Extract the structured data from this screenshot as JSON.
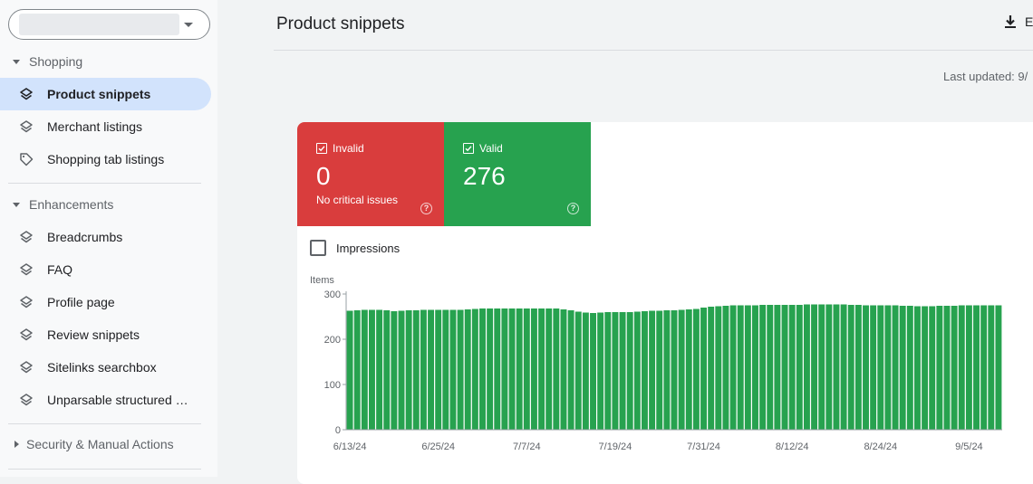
{
  "sidebar": {
    "sections": [
      {
        "label": "Shopping",
        "expanded": true,
        "items": [
          {
            "label": "Product snippets",
            "icon": "layers-icon",
            "active": true
          },
          {
            "label": "Merchant listings",
            "icon": "layers-icon"
          },
          {
            "label": "Shopping tab listings",
            "icon": "tag-icon"
          }
        ]
      },
      {
        "label": "Enhancements",
        "expanded": true,
        "items": [
          {
            "label": "Breadcrumbs",
            "icon": "layers-icon"
          },
          {
            "label": "FAQ",
            "icon": "layers-icon"
          },
          {
            "label": "Profile page",
            "icon": "layers-icon"
          },
          {
            "label": "Review snippets",
            "icon": "layers-icon"
          },
          {
            "label": "Sitelinks searchbox",
            "icon": "layers-icon"
          },
          {
            "label": "Unparsable structured data",
            "icon": "layers-icon"
          }
        ]
      },
      {
        "label": "Security & Manual Actions",
        "expanded": false,
        "items": []
      }
    ]
  },
  "header": {
    "title": "Product snippets",
    "export_label": "E",
    "last_updated": "Last updated: 9/"
  },
  "summary": {
    "invalid": {
      "label": "Invalid",
      "value": "0",
      "note": "No critical issues",
      "color": "#d93d3d"
    },
    "valid": {
      "label": "Valid",
      "value": "276",
      "color": "#27a24f"
    }
  },
  "impressions": {
    "label": "Impressions",
    "checked": false
  },
  "chart_data": {
    "type": "bar",
    "ylabel": "Items",
    "ylim": [
      0,
      300
    ],
    "y_ticks": [
      "300",
      "200",
      "100",
      "0"
    ],
    "x_ticks": [
      "6/13/24",
      "6/25/24",
      "7/7/24",
      "7/19/24",
      "7/31/24",
      "8/12/24",
      "8/24/24",
      "9/5/24"
    ],
    "color": "#27a24f",
    "values": [
      263,
      264,
      265,
      265,
      265,
      264,
      262,
      263,
      264,
      264,
      265,
      265,
      265,
      265,
      265,
      265,
      266,
      267,
      268,
      268,
      268,
      268,
      268,
      268,
      268,
      268,
      268,
      268,
      268,
      266,
      264,
      261,
      259,
      258,
      259,
      260,
      260,
      260,
      260,
      261,
      262,
      263,
      263,
      264,
      264,
      265,
      266,
      267,
      270,
      272,
      273,
      274,
      275,
      275,
      275,
      275,
      276,
      276,
      276,
      276,
      276,
      276,
      277,
      277,
      277,
      277,
      277,
      277,
      276,
      276,
      275,
      275,
      275,
      275,
      275,
      274,
      274,
      273,
      273,
      273,
      274,
      274,
      274,
      275,
      275,
      275,
      275,
      275,
      275
    ]
  }
}
